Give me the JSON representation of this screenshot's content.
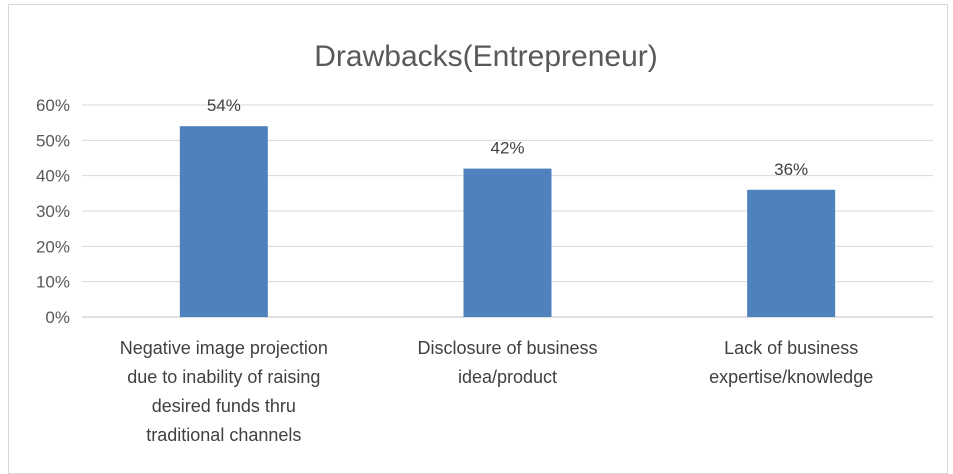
{
  "chart_data": {
    "type": "bar",
    "title": "Drawbacks(Entrepreneur)",
    "categories": [
      [
        "Negative image projection",
        "due to inability of raising",
        "desired funds thru",
        "traditional channels"
      ],
      [
        "Disclosure of business",
        "idea/product"
      ],
      [
        "Lack of business",
        "expertise/knowledge"
      ]
    ],
    "values": [
      54,
      42,
      36
    ],
    "data_labels": [
      "54%",
      "42%",
      "36%"
    ],
    "y_ticks": [
      "0%",
      "10%",
      "20%",
      "30%",
      "40%",
      "50%",
      "60%"
    ],
    "ylim": [
      0,
      60
    ],
    "grid": true,
    "bar_color": "#4f81bd"
  }
}
